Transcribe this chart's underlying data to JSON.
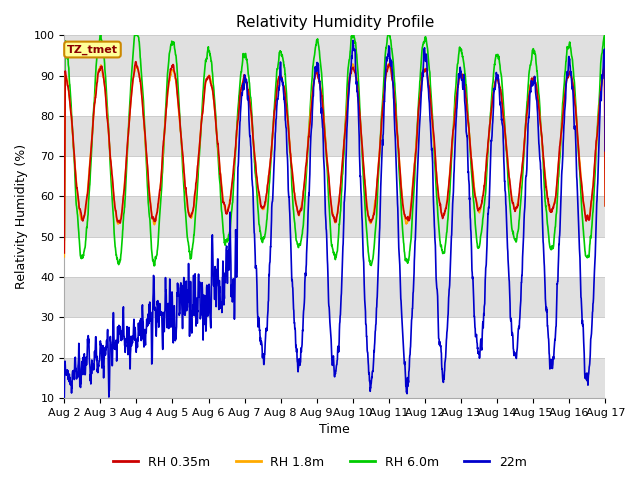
{
  "title": "Relativity Humidity Profile",
  "xlabel": "Time",
  "ylabel": "Relativity Humidity (%)",
  "ylim": [
    10,
    100
  ],
  "yticks": [
    10,
    20,
    30,
    40,
    50,
    60,
    70,
    80,
    90,
    100
  ],
  "x_tick_labels": [
    "Aug 2",
    "Aug 3",
    "Aug 4",
    "Aug 5",
    "Aug 6",
    "Aug 7",
    "Aug 8",
    "Aug 9",
    "Aug 10",
    "Aug 11",
    "Aug 12",
    "Aug 13",
    "Aug 14",
    "Aug 15",
    "Aug 16",
    "Aug 17"
  ],
  "colors": {
    "RH 0.35m": "#cc0000",
    "RH 1.8m": "#ffaa00",
    "RH 6.0m": "#00cc00",
    "22m": "#0000cc"
  },
  "legend_label_box": "TZ_tmet",
  "legend_label_box_bg": "#ffff99",
  "legend_label_box_border": "#cc8800",
  "bg_stripe_color": "#e0e0e0",
  "line_width": 1.2,
  "title_fontsize": 11,
  "axis_fontsize": 9,
  "tick_fontsize": 8
}
